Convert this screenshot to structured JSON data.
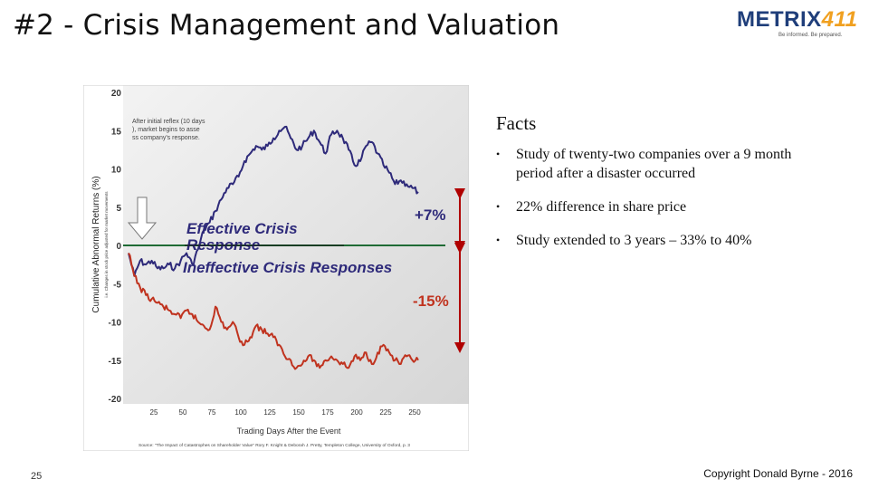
{
  "slide": {
    "title": "#2 - Crisis Management and Valuation",
    "page_number": "25",
    "copyright": "Copyright Donald Byrne - 2016"
  },
  "logo": {
    "name_part1": "METRIX",
    "name_part2": "411",
    "tagline": "Be informed. Be prepared."
  },
  "facts": {
    "title": "Facts",
    "bullet_glyph": "•",
    "items": [
      "Study of twenty-two companies over a 9 month period after a disaster occurred",
      "22% difference in share price",
      "Study extended to 3 years – 33% to 40%"
    ]
  },
  "chart_data": {
    "type": "line",
    "ylabel": "Cumulative Abnormal Returns (%)",
    "ylabel_sub": "i.e. Changes in stock price adjusted for market movements",
    "xlabel": "Trading Days After the Event",
    "source": "Source: \"The Impact of Catastrophes on Shareholder Value\" Rory F. Knight & Deborah J. Pretty, Templeton College, University of Oxford, p. 3",
    "yticks": [
      "20",
      "15",
      "10",
      "5",
      "0",
      "-5",
      "-10",
      "-15",
      "-20"
    ],
    "xticks": [
      "25",
      "50",
      "75",
      "100",
      "125",
      "150",
      "175",
      "200",
      "225",
      "250"
    ],
    "ylim": [
      -20,
      20
    ],
    "annotation_reflex": "After initial reflex (10 days), market begins to assess company's response.",
    "label_effective": "Effective Crisis Response",
    "label_ineffective": "Ineffective Crisis Responses",
    "end_effective": "+7%",
    "end_ineffective": "-15%",
    "colors": {
      "effective": "#2e2a7a",
      "ineffective": "#c0331f",
      "zero_line": "#1f6b35",
      "arrows": "#b00000"
    },
    "series": [
      {
        "key": "effective",
        "x": [
          0,
          5,
          10,
          15,
          20,
          25,
          30,
          35,
          40,
          45,
          50,
          55,
          60,
          65,
          70,
          75,
          80,
          85,
          90,
          95,
          100,
          105,
          110,
          115,
          120,
          125,
          130,
          135,
          140,
          145,
          150,
          155,
          160,
          165,
          170,
          175,
          180,
          185,
          190,
          195,
          200,
          205,
          210,
          215,
          220,
          225,
          230,
          235,
          240,
          245,
          250
        ],
        "values": [
          -1,
          -4,
          -2,
          -2.5,
          -2,
          -3,
          -3,
          -2.5,
          -3,
          -2,
          -1,
          -2.5,
          -0.5,
          2,
          3,
          4.5,
          6,
          7.5,
          8,
          9,
          11,
          12,
          13,
          12.5,
          13,
          14,
          15,
          15.5,
          14,
          12.5,
          13,
          14,
          15,
          13.5,
          12,
          14.5,
          15,
          14,
          12.5,
          10.5,
          11,
          13,
          13.5,
          12,
          10.5,
          9.5,
          8,
          8.5,
          8,
          7.5,
          7
        ]
      },
      {
        "key": "ineffective",
        "x": [
          0,
          5,
          10,
          15,
          20,
          25,
          30,
          35,
          40,
          45,
          50,
          55,
          60,
          65,
          70,
          75,
          80,
          85,
          90,
          95,
          100,
          105,
          110,
          115,
          120,
          125,
          130,
          135,
          140,
          145,
          150,
          155,
          160,
          165,
          170,
          175,
          180,
          185,
          190,
          195,
          200,
          205,
          210,
          215,
          220,
          225,
          230,
          235,
          240,
          245,
          250
        ],
        "values": [
          -1,
          -4,
          -5.5,
          -6.5,
          -7,
          -7.5,
          -8,
          -8.5,
          -9,
          -9.5,
          -8.5,
          -9,
          -10,
          -10.5,
          -11,
          -8,
          -10,
          -11,
          -10,
          -12,
          -13,
          -12,
          -10.5,
          -11,
          -11.5,
          -12,
          -13,
          -14.5,
          -15,
          -16,
          -15.5,
          -14.5,
          -15,
          -16,
          -15,
          -14.5,
          -15,
          -15.5,
          -16,
          -14.5,
          -15,
          -14,
          -15.5,
          -14,
          -13,
          -14,
          -15,
          -15.5,
          -14.5,
          -15,
          -15
        ]
      }
    ]
  }
}
